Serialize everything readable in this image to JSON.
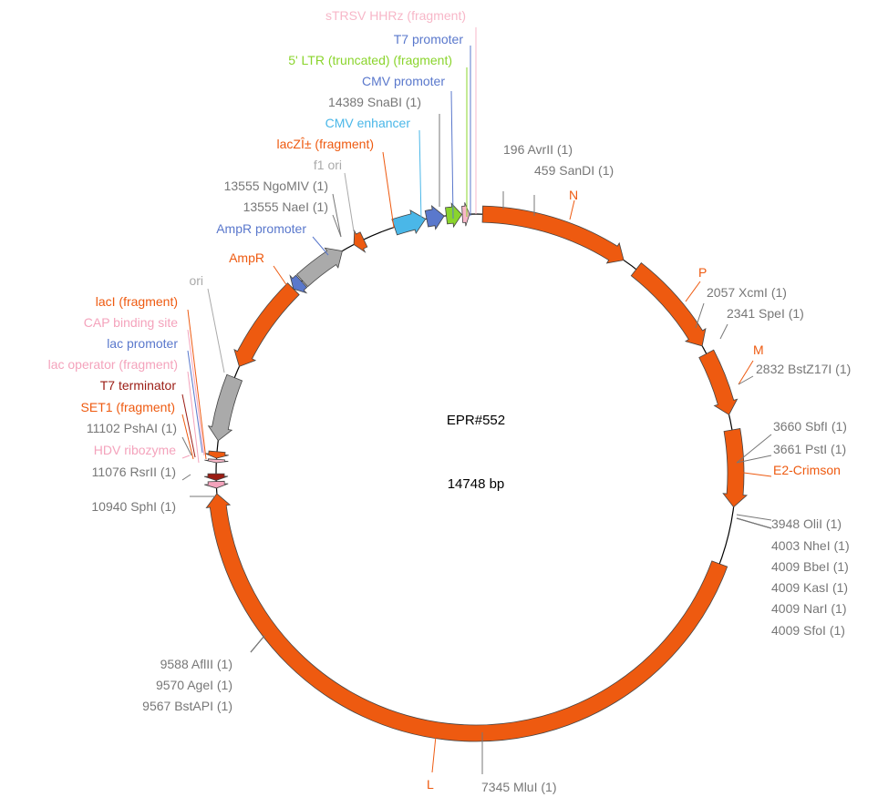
{
  "plasmid": {
    "name": "EPR#552",
    "size_label": "14748 bp",
    "length_bp": 14748
  },
  "colors": {
    "backbone": "#000000",
    "site": "#777777",
    "orange": "#ee5a10",
    "light_orange": "#f27a2a",
    "dark_red": "#9b1c14",
    "pink": "#f4a3bc",
    "light_pink": "#f7b7c8",
    "grey_feature": "#aaaaaa",
    "blue": "#5a78cc",
    "light_blue": "#4ab7e8",
    "green": "#8ad42c"
  },
  "features": [
    {
      "name": "N",
      "start_bp": 60,
      "end_bp": 1420,
      "color": "orange",
      "label": "N",
      "label_color": "orange"
    },
    {
      "name": "P",
      "start_bp": 1560,
      "end_bp": 2480,
      "color": "orange",
      "label": "P",
      "label_color": "orange"
    },
    {
      "name": "M",
      "start_bp": 2560,
      "end_bp": 3150,
      "color": "orange",
      "label": "M",
      "label_color": "orange"
    },
    {
      "name": "E2-Crimson",
      "start_bp": 3290,
      "end_bp": 3990,
      "color": "orange",
      "label": "E2-Crimson",
      "label_color": "orange"
    },
    {
      "name": "L",
      "start_bp": 4520,
      "end_bp": 10880,
      "color": "orange",
      "label": "L",
      "label_color": "orange"
    },
    {
      "name": "T7 terminator",
      "start_bp": 11000,
      "end_bp": 11060,
      "color": "dark_red",
      "reverse": true
    },
    {
      "name": "HDV ribozyme",
      "start_bp": 10930,
      "end_bp": 10990,
      "color": "pink",
      "reverse": true
    },
    {
      "name": "lac operator",
      "start_bp": 11160,
      "end_bp": 11190,
      "color": "light_pink",
      "reverse": true
    },
    {
      "name": "lacI",
      "start_bp": 11200,
      "end_bp": 11260,
      "color": "orange",
      "reverse": true
    },
    {
      "name": "ori",
      "start_bp": 11360,
      "end_bp": 11950,
      "color": "grey_feature",
      "reverse": true
    },
    {
      "name": "AmpR",
      "start_bp": 12060,
      "end_bp": 12920,
      "color": "orange",
      "reverse": true
    },
    {
      "name": "AmpR promoter",
      "start_bp": 12920,
      "end_bp": 13020,
      "color": "blue",
      "reverse": true
    },
    {
      "name": "f1 ori",
      "start_bp": 13030,
      "end_bp": 13480,
      "color": "grey_feature",
      "reverse": false
    },
    {
      "name": "lacZ fragment",
      "start_bp": 13600,
      "end_bp": 13700,
      "color": "orange",
      "reverse": true
    },
    {
      "name": "CMV enhancer",
      "start_bp": 14000,
      "end_bp": 14290,
      "color": "light_blue",
      "reverse": false
    },
    {
      "name": "CMV promoter",
      "start_bp": 14300,
      "end_bp": 14460,
      "color": "blue",
      "reverse": false
    },
    {
      "name": "5' LTR",
      "start_bp": 14480,
      "end_bp": 14620,
      "color": "green",
      "reverse": false
    },
    {
      "name": "T7 promoter / sTRSV",
      "start_bp": 14625,
      "end_bp": 14690,
      "color": "light_pink",
      "reverse": false
    }
  ],
  "labels": [
    {
      "text": "sTRSV HHRz (fragment)",
      "color": "light_pink",
      "anchor": "end"
    },
    {
      "text": "T7 promoter",
      "color": "blue",
      "anchor": "end"
    },
    {
      "text": "5' LTR (truncated) (fragment)",
      "color": "green",
      "anchor": "end"
    },
    {
      "text": "CMV promoter",
      "color": "blue",
      "anchor": "end"
    },
    {
      "text": "14389 SnaBI  (1)",
      "color": "site",
      "anchor": "end"
    },
    {
      "text": "CMV enhancer",
      "color": "light_blue",
      "anchor": "end"
    },
    {
      "text": "lacZÎ± (fragment)",
      "color": "orange",
      "anchor": "end"
    },
    {
      "text": "f1 ori",
      "color": "grey_feature",
      "anchor": "end"
    },
    {
      "text": "13555 NgoMIV  (1)",
      "color": "site",
      "anchor": "end"
    },
    {
      "text": "13555 NaeI  (1)",
      "color": "site",
      "anchor": "end"
    },
    {
      "text": "AmpR promoter",
      "color": "blue",
      "anchor": "end"
    },
    {
      "text": "AmpR",
      "color": "orange",
      "anchor": "end"
    },
    {
      "text": "ori",
      "color": "grey_feature",
      "anchor": "end"
    },
    {
      "text": "lacI (fragment)",
      "color": "orange",
      "anchor": "end"
    },
    {
      "text": "CAP binding site",
      "color": "pink",
      "anchor": "end"
    },
    {
      "text": "lac promoter",
      "color": "blue",
      "anchor": "end"
    },
    {
      "text": "lac operator (fragment)",
      "color": "pink",
      "anchor": "end"
    },
    {
      "text": "T7 terminator",
      "color": "dark_red",
      "anchor": "end"
    },
    {
      "text": "SET1 (fragment)",
      "color": "orange",
      "anchor": "end"
    },
    {
      "text": "11102 PshAI  (1)",
      "color": "site",
      "anchor": "end"
    },
    {
      "text": "HDV ribozyme",
      "color": "pink",
      "anchor": "end"
    },
    {
      "text": "11076 RsrII  (1)",
      "color": "site",
      "anchor": "end"
    },
    {
      "text": "10940 SphI  (1)",
      "color": "site",
      "anchor": "end"
    },
    {
      "text": "9588 AflII  (1)",
      "color": "site",
      "anchor": "end"
    },
    {
      "text": "9570 AgeI  (1)",
      "color": "site",
      "anchor": "end"
    },
    {
      "text": "9567 BstAPI  (1)",
      "color": "site",
      "anchor": "end"
    },
    {
      "text": "196 AvrII  (1)",
      "color": "site",
      "anchor": "start"
    },
    {
      "text": "459 SanDI  (1)",
      "color": "site",
      "anchor": "start"
    },
    {
      "text": "N",
      "color": "orange",
      "anchor": "start"
    },
    {
      "text": "P",
      "color": "orange",
      "anchor": "start"
    },
    {
      "text": "2057 XcmI  (1)",
      "color": "site",
      "anchor": "start"
    },
    {
      "text": "2341 SpeI  (1)",
      "color": "site",
      "anchor": "start"
    },
    {
      "text": "M",
      "color": "orange",
      "anchor": "start"
    },
    {
      "text": "2832 BstZ17I  (1)",
      "color": "site",
      "anchor": "start"
    },
    {
      "text": "3660 SbfI  (1)",
      "color": "site",
      "anchor": "start"
    },
    {
      "text": "3661 PstI  (1)",
      "color": "site",
      "anchor": "start"
    },
    {
      "text": "E2-Crimson",
      "color": "orange",
      "anchor": "start"
    },
    {
      "text": "3948 OliI  (1)",
      "color": "site",
      "anchor": "start"
    },
    {
      "text": "4003 NheI  (1)",
      "color": "site",
      "anchor": "start"
    },
    {
      "text": "4009 BbeI  (1)",
      "color": "site",
      "anchor": "start"
    },
    {
      "text": "4009 KasI  (1)",
      "color": "site",
      "anchor": "start"
    },
    {
      "text": "4009 NarI  (1)",
      "color": "site",
      "anchor": "start"
    },
    {
      "text": "4009 SfoI  (1)",
      "color": "site",
      "anchor": "start"
    },
    {
      "text": "L",
      "color": "orange",
      "anchor": "start"
    },
    {
      "text": "7345 MluI  (1)",
      "color": "site",
      "anchor": "start"
    }
  ]
}
